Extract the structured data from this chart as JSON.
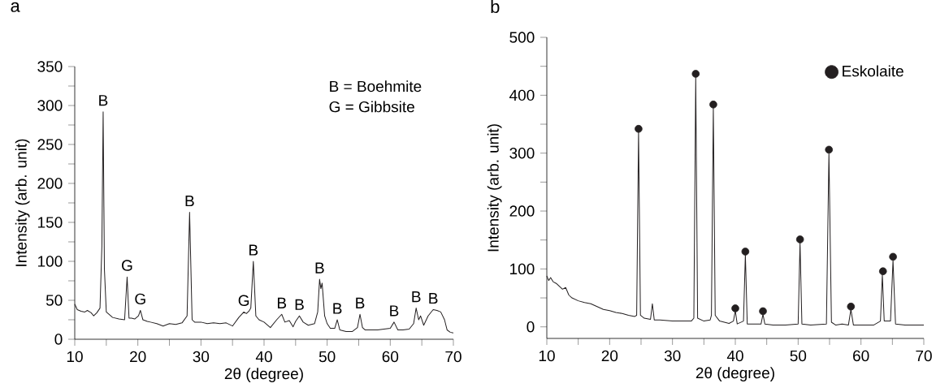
{
  "chart_data": [
    {
      "type": "line",
      "title": "a",
      "xlabel": "2θ (degree)",
      "ylabel": "Intensity (arb. unit)",
      "x": [
        10,
        10.4,
        11,
        11.6,
        12,
        12.6,
        13,
        13.5,
        14,
        14.3,
        14.5,
        14.7,
        15,
        16,
        17,
        17.9,
        18.3,
        18.6,
        19,
        19.5,
        20.1,
        20.4,
        20.8,
        21.5,
        22,
        23,
        24,
        25,
        26,
        27,
        27.8,
        28.2,
        28.6,
        29,
        30,
        31,
        32,
        33,
        34,
        35,
        36,
        36.8,
        37.2,
        37.6,
        37.9,
        38.3,
        38.7,
        39.2,
        40,
        41,
        42,
        42.8,
        43.3,
        44,
        44.6,
        45,
        45.6,
        46.2,
        47,
        48,
        48.5,
        48.8,
        49,
        49.2,
        49.6,
        50,
        50.5,
        51.2,
        51.6,
        52,
        53,
        54,
        54.8,
        55.2,
        55.6,
        56,
        58,
        60,
        60.6,
        61.2,
        62,
        63,
        63.7,
        64.1,
        64.5,
        64.8,
        65.3,
        66,
        66.8,
        67.4,
        68,
        68.6,
        69,
        69.5,
        70
      ],
      "series": [
        {
          "color": "#231f20",
          "values": [
            45,
            38,
            36,
            35,
            37,
            34,
            30,
            34,
            40,
            120,
            292,
            90,
            35,
            28,
            26,
            25,
            80,
            27,
            27,
            26,
            30,
            37,
            25,
            23,
            22,
            20,
            17,
            20,
            19,
            21,
            30,
            163,
            25,
            22,
            22,
            20,
            21,
            20,
            21,
            17,
            28,
            35,
            33,
            36,
            40,
            100,
            30,
            25,
            22,
            15,
            25,
            32,
            22,
            24,
            16,
            23,
            30,
            22,
            18,
            20,
            35,
            77,
            65,
            72,
            30,
            20,
            14,
            14,
            25,
            12,
            10,
            10,
            15,
            32,
            15,
            12,
            12,
            14,
            22,
            12,
            12,
            13,
            20,
            40,
            25,
            30,
            18,
            30,
            38,
            37,
            35,
            25,
            12,
            9,
            8
          ]
        }
      ],
      "annotations": [
        "B = Boehmite",
        "G = Gibbsite",
        {
          "text": "B",
          "x": 14.5,
          "y": 292
        },
        {
          "text": "G",
          "x": 18.3,
          "y": 80
        },
        {
          "text": "G",
          "x": 20.4,
          "y": 37
        },
        {
          "text": "B",
          "x": 28.2,
          "y": 163
        },
        {
          "text": "G",
          "x": 36.8,
          "y": 35
        },
        {
          "text": "B",
          "x": 38.3,
          "y": 100
        },
        {
          "text": "B",
          "x": 42.8,
          "y": 32
        },
        {
          "text": "B",
          "x": 45.6,
          "y": 30
        },
        {
          "text": "B",
          "x": 48.8,
          "y": 77
        },
        {
          "text": "B",
          "x": 51.6,
          "y": 25
        },
        {
          "text": "B",
          "x": 55.2,
          "y": 32
        },
        {
          "text": "B",
          "x": 60.6,
          "y": 22
        },
        {
          "text": "B",
          "x": 64.1,
          "y": 40
        },
        {
          "text": "B",
          "x": 66.8,
          "y": 38
        }
      ],
      "xlim": [
        10,
        70
      ],
      "ylim": [
        0,
        350
      ],
      "xticks": [
        10,
        {
          "value": 15,
          "label": null
        },
        20,
        {
          "value": 25,
          "label": null
        },
        30,
        {
          "value": 35,
          "label": null
        },
        40,
        {
          "value": 45,
          "label": null
        },
        50,
        {
          "value": 55,
          "label": null
        },
        60,
        {
          "value": 65,
          "label": null
        },
        70
      ],
      "yticks": [
        0,
        {
          "value": 25,
          "label": null
        },
        50,
        {
          "value": 75,
          "label": null
        },
        100,
        {
          "value": 125,
          "label": null
        },
        150,
        {
          "value": 175,
          "label": null
        },
        200,
        {
          "value": 225,
          "label": null
        },
        250,
        {
          "value": 275,
          "label": null
        },
        300,
        {
          "value": 325,
          "label": null
        },
        350
      ],
      "grid": false,
      "legend": false
    },
    {
      "type": "line",
      "title": "b",
      "xlabel": "2θ (degree)",
      "ylabel": "Intensity (arb. unit)",
      "x": [
        10,
        10.3,
        10.6,
        11,
        11.5,
        12,
        12.5,
        13,
        13.5,
        14,
        15,
        16,
        17,
        18,
        19,
        20,
        21,
        22,
        23,
        24,
        24.3,
        24.6,
        24.9,
        25.5,
        26.5,
        26.8,
        27.1,
        28,
        30,
        32,
        33,
        33.4,
        33.7,
        34,
        35,
        36,
        36.2,
        36.5,
        36.8,
        37.5,
        39,
        39.7,
        40,
        40.3,
        41.3,
        41.6,
        41.9,
        43,
        44.1,
        44.4,
        44.7,
        46,
        48,
        50,
        50.3,
        50.6,
        52,
        54.5,
        54.9,
        55.3,
        56,
        57,
        58,
        58.4,
        58.8,
        60,
        62,
        63.1,
        63.4,
        63.7,
        64.7,
        65.1,
        65.5,
        67,
        70
      ],
      "series": [
        {
          "color": "#231f20",
          "values": [
            88,
            80,
            85,
            78,
            75,
            70,
            65,
            68,
            55,
            50,
            45,
            42,
            40,
            35,
            30,
            28,
            25,
            23,
            20,
            18,
            20,
            338,
            20,
            15,
            13,
            40,
            12,
            12,
            10,
            10,
            10,
            15,
            432,
            15,
            10,
            12,
            20,
            378,
            20,
            10,
            6,
            10,
            28,
            5,
            10,
            125,
            5,
            5,
            5,
            22,
            5,
            3,
            3,
            5,
            145,
            5,
            3,
            5,
            300,
            8,
            3,
            5,
            3,
            30,
            3,
            3,
            3,
            10,
            90,
            10,
            10,
            115,
            5,
            3,
            3
          ]
        },
        {
          "type": "scatter",
          "name": "Eskolaite",
          "color": "#231f20",
          "marker": "circle",
          "x": [
            24.6,
            33.7,
            36.5,
            40,
            41.6,
            44.4,
            50.3,
            54.9,
            58.4,
            63.5,
            65.1
          ],
          "values": [
            342,
            437,
            384,
            32,
            130,
            27,
            151,
            306,
            35,
            96,
            121
          ]
        }
      ],
      "xlim": [
        10,
        70
      ],
      "ylim": [
        -20,
        500
      ],
      "xticks": [
        10,
        {
          "value": 15,
          "label": null
        },
        20,
        {
          "value": 25,
          "label": null
        },
        30,
        {
          "value": 35,
          "label": null
        },
        40,
        {
          "value": 45,
          "label": null
        },
        50,
        {
          "value": 55,
          "label": null
        },
        60,
        {
          "value": 65,
          "label": null
        },
        70
      ],
      "yticks": [
        0,
        {
          "value": 50,
          "label": null
        },
        100,
        {
          "value": 150,
          "label": null
        },
        200,
        {
          "value": 250,
          "label": null
        },
        300,
        {
          "value": 350,
          "label": null
        },
        400,
        {
          "value": 450,
          "label": null
        },
        500
      ],
      "grid": false,
      "legend": "top right"
    }
  ]
}
